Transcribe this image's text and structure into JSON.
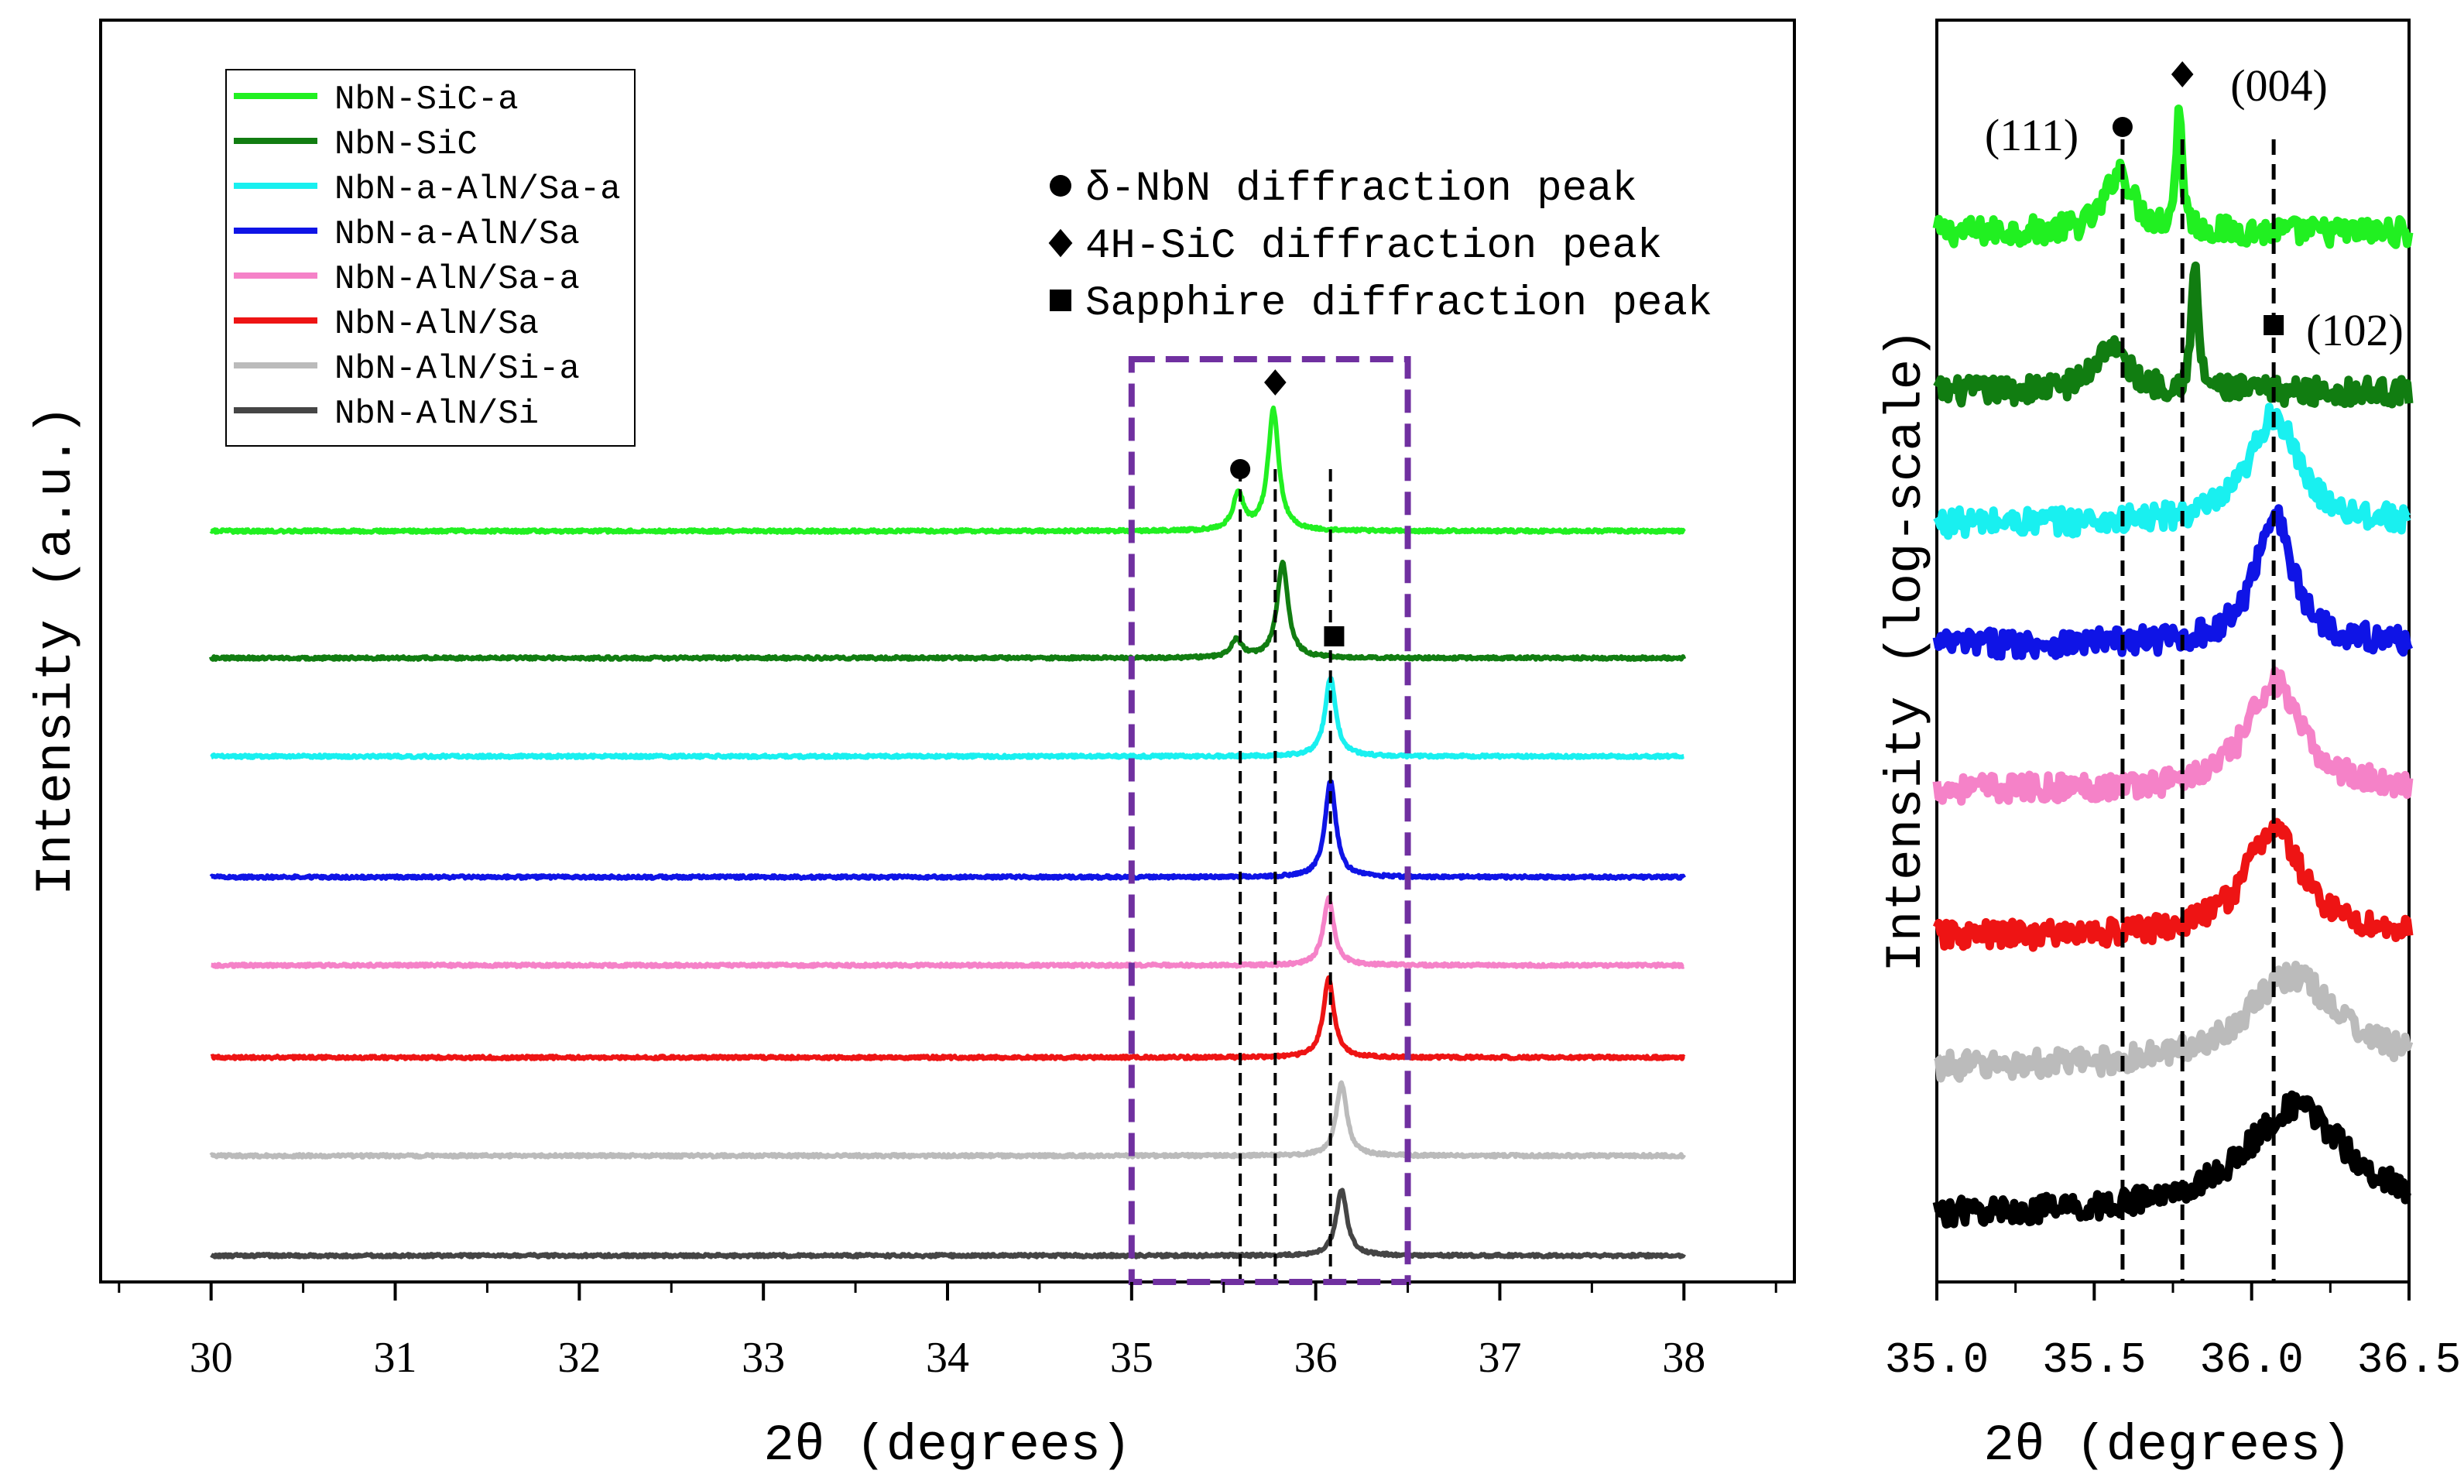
{
  "chart_data": [
    {
      "type": "line",
      "panel": "left",
      "xlabel": "2θ (degrees)",
      "ylabel": "Intensity (a.u.)",
      "xlim": [
        29.4,
        38.6
      ],
      "xticks": [
        "30",
        "31",
        "32",
        "33",
        "34",
        "35",
        "36",
        "37",
        "38"
      ],
      "series": [
        {
          "name": "NbN-SiC-a",
          "color": "#21f021",
          "peaks": [
            {
              "x": 35.58,
              "h": 0.6
            },
            {
              "x": 35.77,
              "h": 2.0
            }
          ]
        },
        {
          "name": "NbN-SiC",
          "color": "#117d11",
          "peaks": [
            {
              "x": 35.57,
              "h": 0.3
            },
            {
              "x": 35.82,
              "h": 1.6
            }
          ]
        },
        {
          "name": "NbN-a-AlN/Sa-a",
          "color": "#19f0f0",
          "peaks": [
            {
              "x": 36.08,
              "h": 1.3
            }
          ]
        },
        {
          "name": "NbN-a-AlN/Sa",
          "color": "#0f14e6",
          "peaks": [
            {
              "x": 36.08,
              "h": 1.6
            }
          ]
        },
        {
          "name": "NbN-AlN/Sa-a",
          "color": "#f582c8",
          "peaks": [
            {
              "x": 36.07,
              "h": 1.1
            }
          ]
        },
        {
          "name": "NbN-AlN/Sa",
          "color": "#ee1414",
          "peaks": [
            {
              "x": 36.07,
              "h": 1.3
            }
          ]
        },
        {
          "name": "NbN-AlN/Si-a",
          "color": "#bbbbbb",
          "peaks": [
            {
              "x": 36.14,
              "h": 1.2
            }
          ]
        },
        {
          "name": "NbN-AlN/Si",
          "color": "#454545",
          "peaks": [
            {
              "x": 36.14,
              "h": 1.1
            }
          ]
        }
      ],
      "reference_lines": [
        35.59,
        35.78,
        36.08
      ],
      "highlight_box": {
        "x_range": [
          35.0,
          36.5
        ],
        "color": "#7030a0"
      },
      "peak_markers": [
        {
          "symbol": "circle",
          "x": 35.59,
          "series": "NbN-SiC-a"
        },
        {
          "symbol": "diamond",
          "x": 35.78,
          "series": "NbN-SiC-a"
        },
        {
          "symbol": "square",
          "x": 36.1,
          "series": "NbN-SiC"
        }
      ],
      "marker_legend": [
        {
          "symbol": "circle",
          "label": "δ-NbN diffraction peak"
        },
        {
          "symbol": "diamond",
          "label": "4H-SiC diffraction peak"
        },
        {
          "symbol": "square",
          "label": "Sapphire diffraction peak"
        }
      ]
    },
    {
      "type": "line",
      "panel": "right",
      "xlabel": "2θ (degrees)",
      "ylabel": "Intensity (log-scale)",
      "xlim": [
        35.0,
        36.5
      ],
      "xticks": [
        "35.0",
        "35.5",
        "36.0",
        "36.5"
      ],
      "reference_lines": [
        35.59,
        35.78,
        36.07
      ],
      "annotations": [
        {
          "label": "(111)",
          "x": 35.59,
          "symbol": "circle"
        },
        {
          "label": "(004)",
          "x": 35.78,
          "symbol": "diamond"
        },
        {
          "label": "(102)",
          "x": 36.07,
          "symbol": "square"
        }
      ]
    }
  ]
}
